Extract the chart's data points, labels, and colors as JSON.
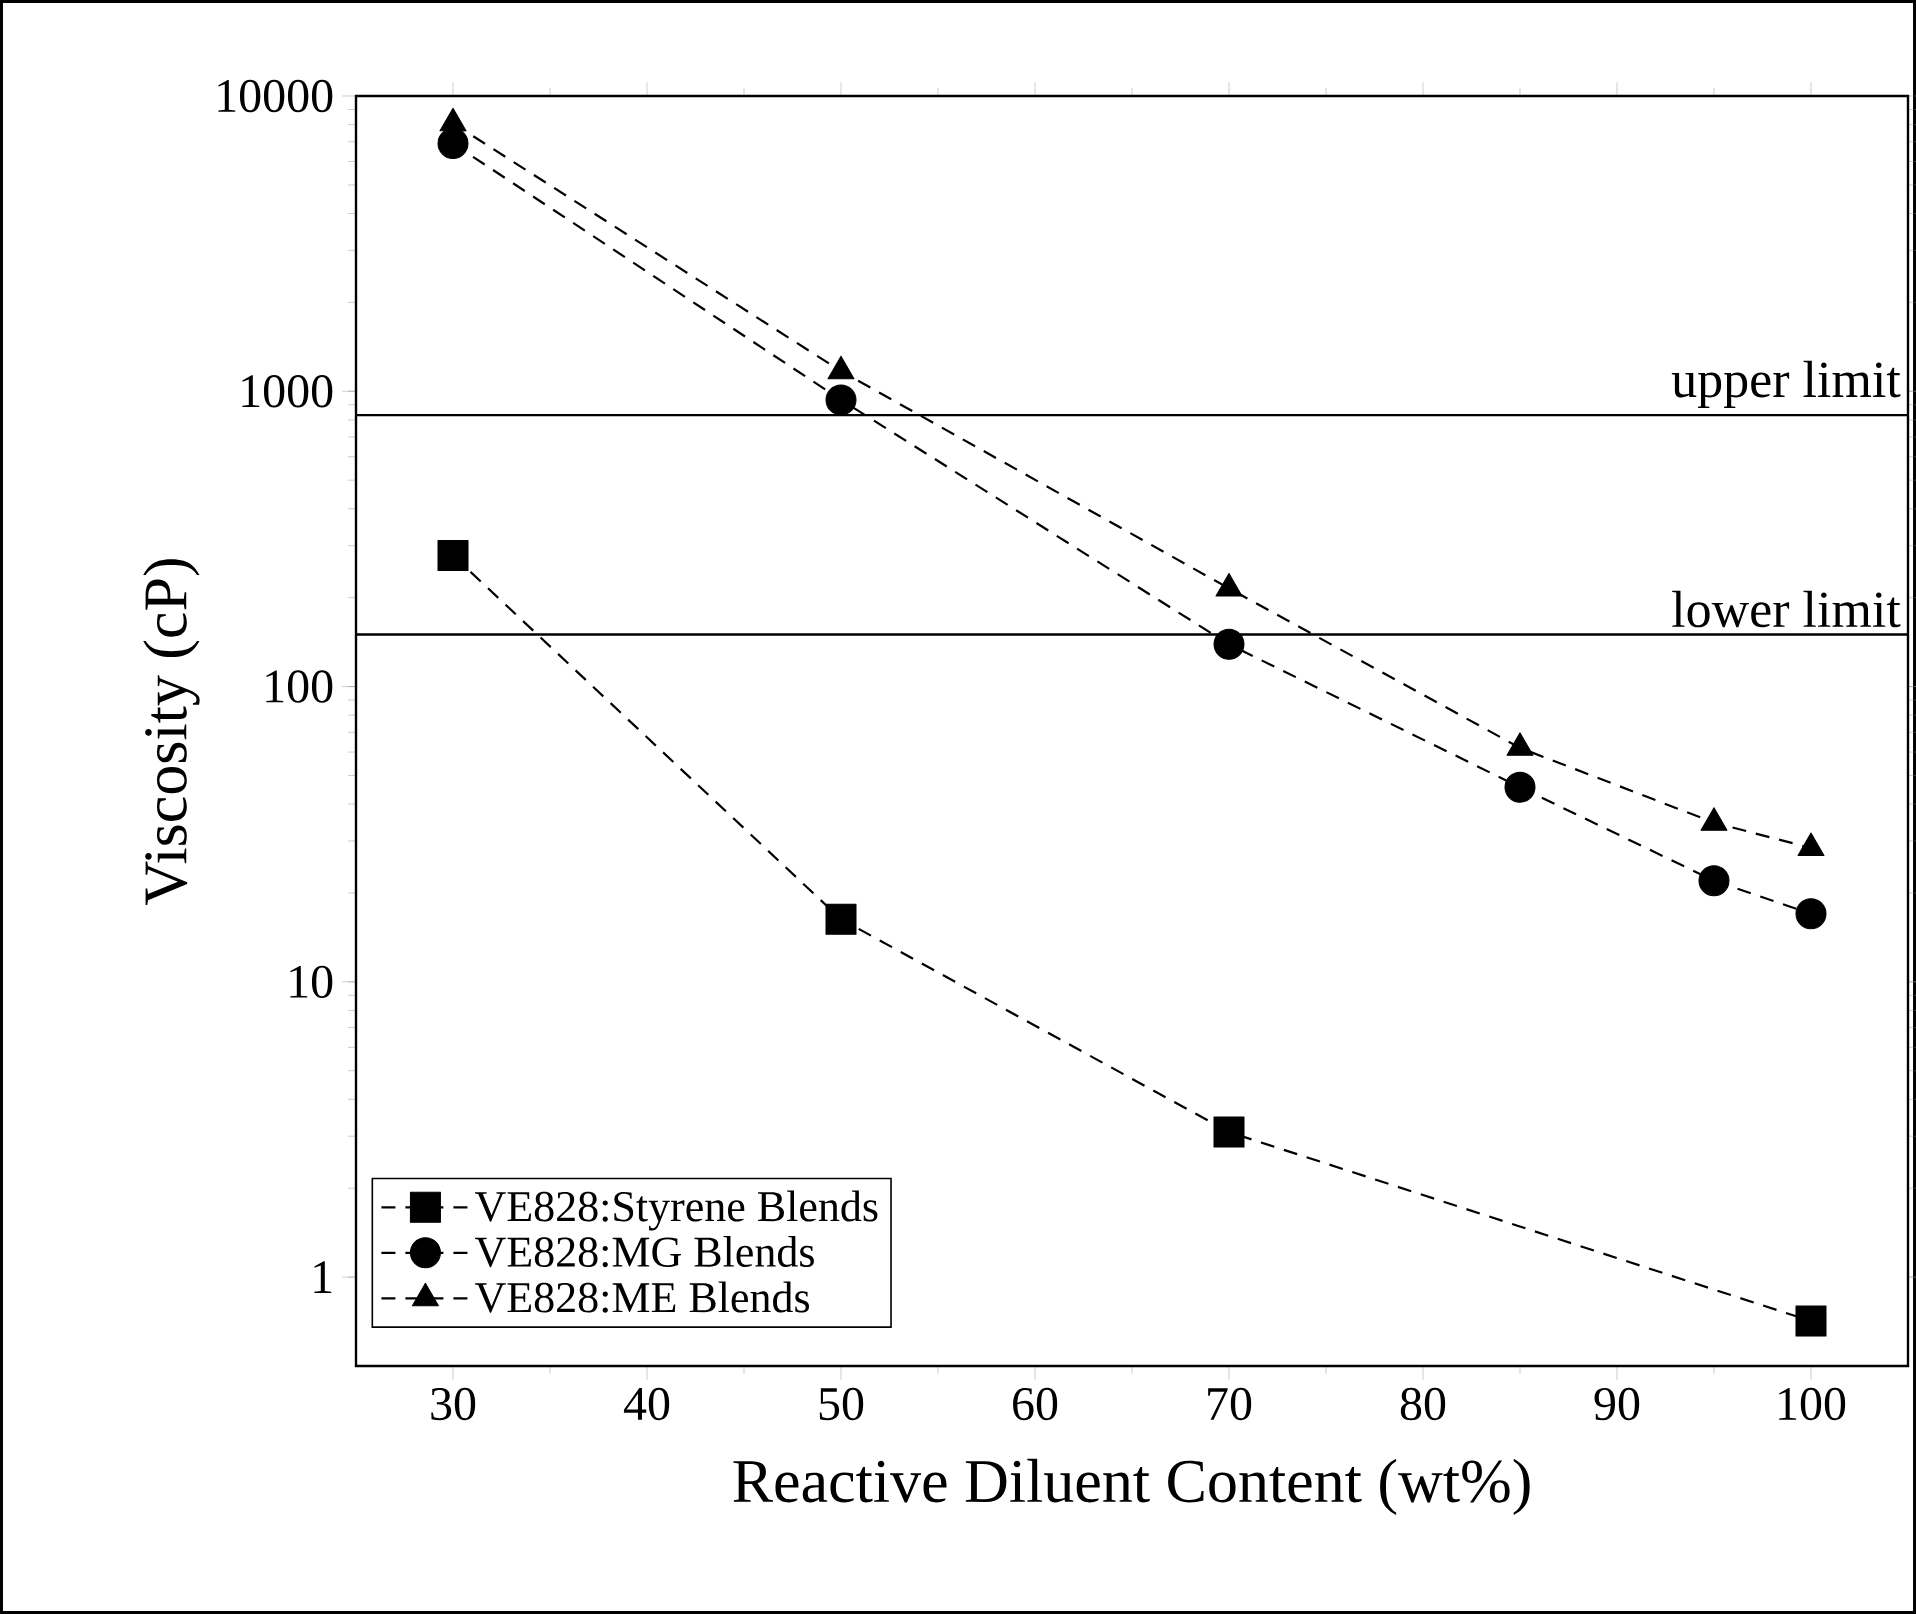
{
  "chart_data": {
    "type": "line",
    "xlabel": "Reactive Diluent Content (wt%)",
    "ylabel": "Viscosity (cP)",
    "log": "y",
    "xlim": [
      25,
      105
    ],
    "xticks": [
      30,
      40,
      50,
      60,
      70,
      80,
      90,
      100
    ],
    "ylim": [
      0.5,
      10000
    ],
    "yticks": [
      1,
      10,
      100,
      1000,
      10000
    ],
    "grid": false,
    "legend": "bottom left",
    "line_style": "dashed",
    "series": [
      {
        "name": "VE828:Styrene Blends",
        "color": "#000000",
        "marker": "square",
        "x": [
          30,
          50,
          70,
          100
        ],
        "values": [
          278,
          16.3,
          3.1,
          0.71
        ]
      },
      {
        "name": "VE828:MG Blends",
        "color": "#000000",
        "marker": "circle",
        "x": [
          30,
          50,
          70,
          85,
          95,
          100
        ],
        "values": [
          6900,
          935,
          139,
          45.6,
          22,
          17
        ]
      },
      {
        "name": "VE828:ME Blends",
        "color": "#000000",
        "marker": "triangle",
        "x": [
          30,
          50,
          70,
          85,
          95,
          100
        ],
        "values": [
          8080,
          1170,
          215,
          62,
          34.6,
          28.4
        ]
      }
    ],
    "ref_lines": [
      {
        "axis": "y",
        "value": 830,
        "label": "upper limit",
        "color": "#000000"
      },
      {
        "axis": "y",
        "value": 150,
        "label": "lower limit",
        "color": "#000000"
      }
    ]
  }
}
